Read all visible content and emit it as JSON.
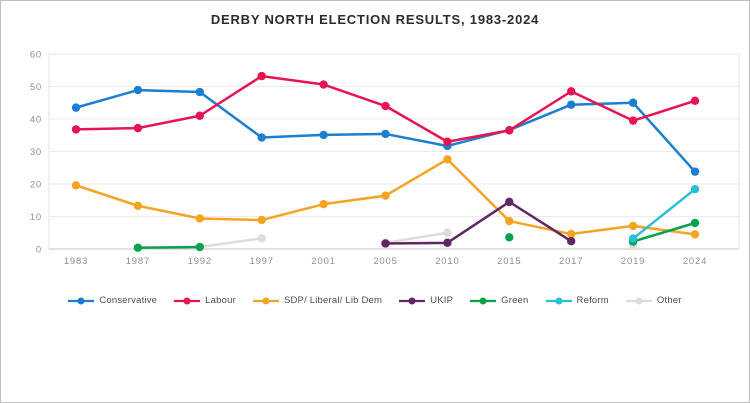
{
  "chart_data": {
    "type": "line",
    "title": "DERBY NORTH ELECTION RESULTS, 1983-2024",
    "categories": [
      "1983",
      "1987",
      "1992",
      "1997",
      "2001",
      "2005",
      "2010",
      "2015",
      "2017",
      "2019",
      "2024"
    ],
    "series": [
      {
        "name": "Conservative",
        "color": "#1b7ed0",
        "values": [
          43.5,
          48.9,
          48.3,
          34.3,
          35.1,
          35.4,
          31.7,
          36.6,
          44.4,
          45.0,
          23.8
        ]
      },
      {
        "name": "Labour",
        "color": "#e61450",
        "values": [
          36.8,
          37.2,
          41.0,
          53.2,
          50.6,
          44.0,
          33.0,
          36.5,
          48.5,
          39.5,
          45.6
        ]
      },
      {
        "name": "SDP/ Liberal/ Lib Dem",
        "color": "#f4a322",
        "values": [
          19.6,
          13.3,
          9.4,
          8.9,
          13.8,
          16.4,
          27.6,
          8.6,
          4.6,
          7.1,
          4.5
        ]
      },
      {
        "name": "UKIP",
        "color": "#5d2862",
        "values": [
          null,
          null,
          null,
          null,
          null,
          1.7,
          1.9,
          14.5,
          2.4,
          null,
          null
        ]
      },
      {
        "name": "Green",
        "color": "#09a04e",
        "values": [
          null,
          0.4,
          0.6,
          null,
          null,
          null,
          null,
          3.6,
          null,
          2.3,
          8.0
        ]
      },
      {
        "name": "Reform",
        "color": "#29bfd6",
        "values": [
          null,
          null,
          null,
          null,
          null,
          null,
          null,
          null,
          null,
          3.2,
          18.4
        ]
      },
      {
        "name": "Other",
        "color": "#dcdcdc",
        "values": [
          null,
          null,
          0.6,
          3.3,
          null,
          1.9,
          5.0,
          null,
          null,
          1.2,
          null
        ]
      }
    ],
    "draw_order": [
      "Other",
      "SDP/ Liberal/ Lib Dem",
      "Green",
      "UKIP",
      "Reform",
      "Conservative",
      "Labour"
    ],
    "y_ticks": [
      0,
      10,
      20,
      30,
      40,
      50,
      60
    ],
    "ylim": [
      0,
      60
    ],
    "grid": true,
    "legend_position": "bottom"
  }
}
